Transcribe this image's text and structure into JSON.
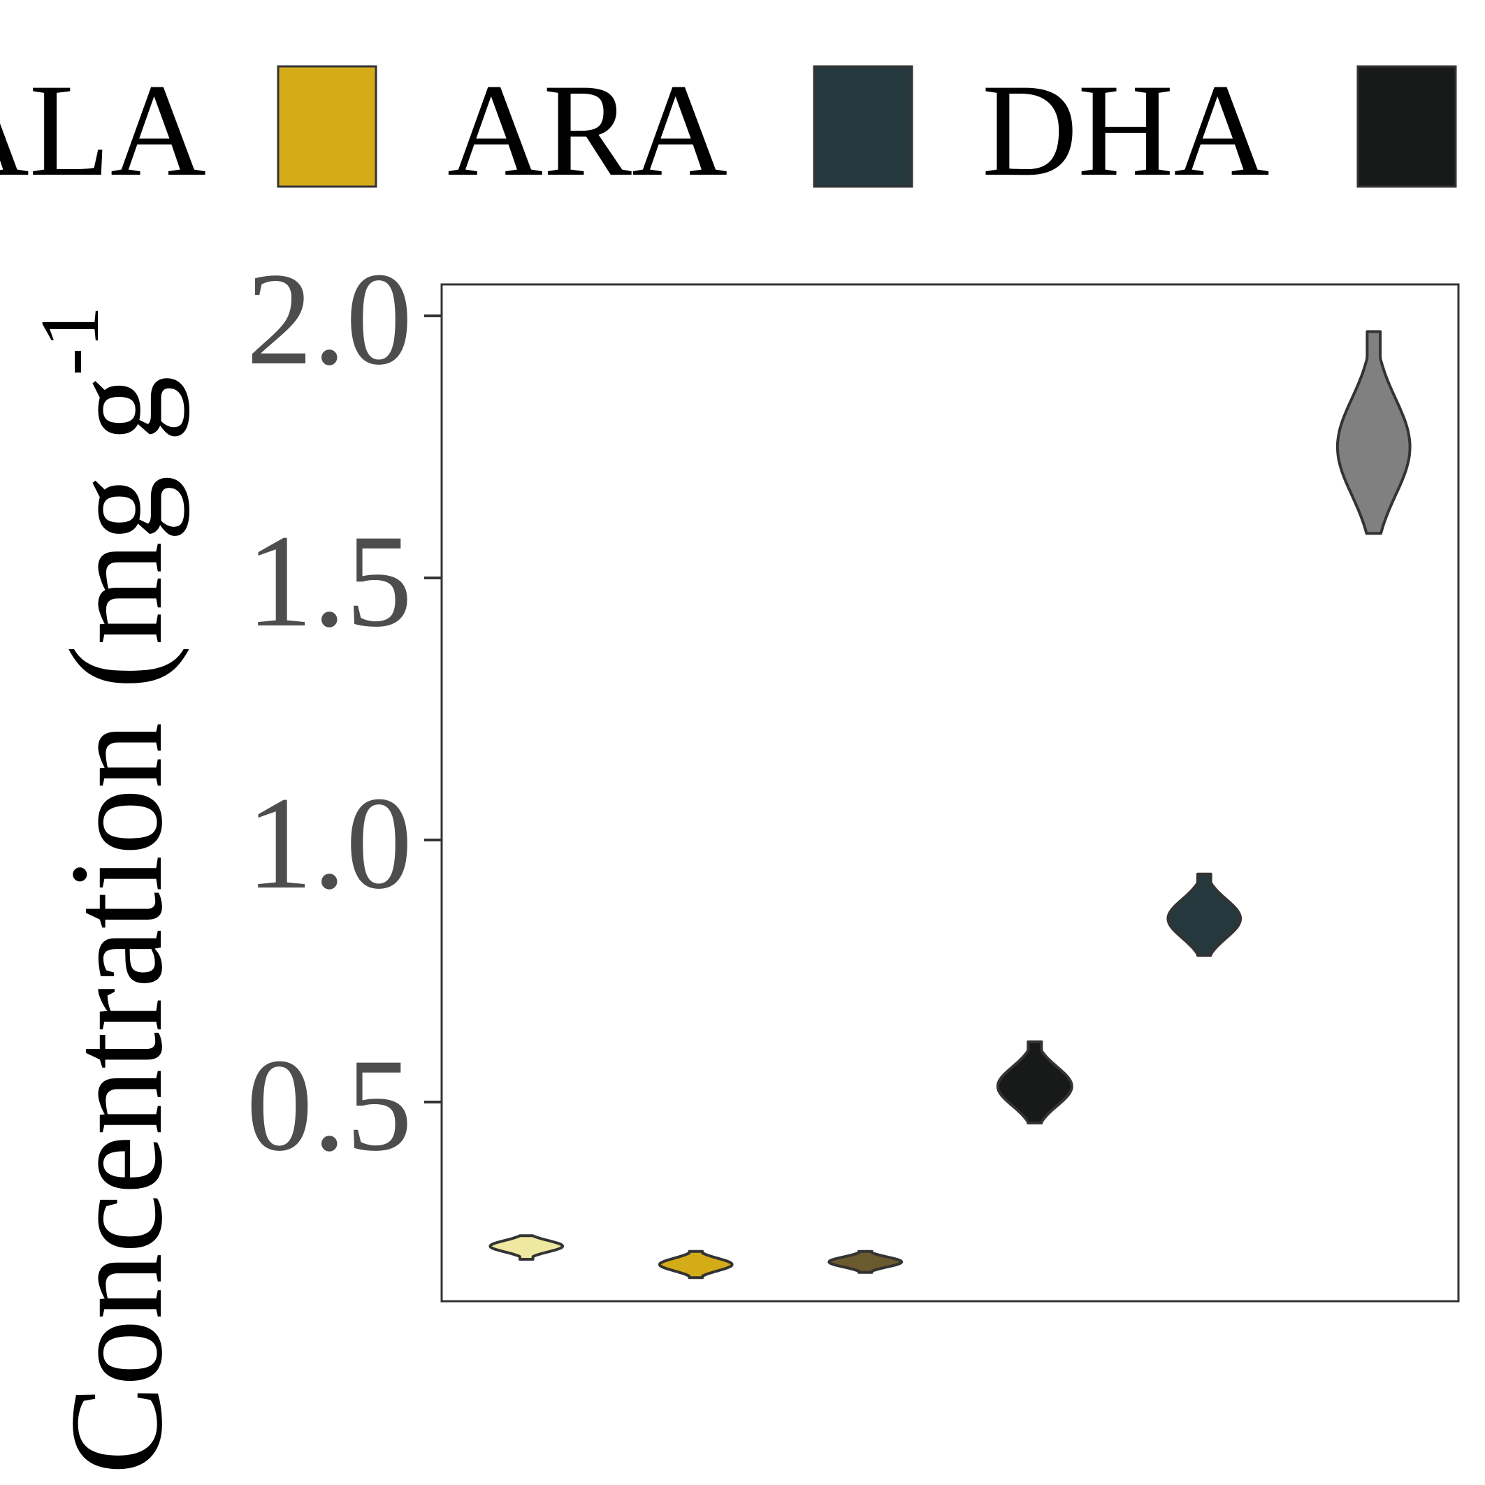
{
  "chart_data": {
    "type": "violin",
    "ylabel": "Concentration (mg g",
    "ylabel_superscript": "-1",
    "yticks": [
      "0.5",
      "1.0",
      "1.5",
      "2.0"
    ],
    "ytick_values": [
      0.5,
      1.0,
      1.5,
      2.0
    ],
    "ylim": [
      0.12,
      2.06
    ],
    "grid": false,
    "legend_position": "top",
    "legend": [
      {
        "name": "ALA",
        "color": "#EEE8A0"
      },
      {
        "name": "ARA",
        "color": "#D4AC18"
      },
      {
        "name": "DHA",
        "color": "#25383D"
      },
      {
        "name": "",
        "color": "#171A19"
      }
    ],
    "series": [
      {
        "fill": "#EEE8A0",
        "stroke": "#333333",
        "min": 0.2,
        "max": 0.245,
        "peak": 0.225,
        "width": 0.45
      },
      {
        "fill": "#D4AC18",
        "stroke": "#333333",
        "min": 0.165,
        "max": 0.215,
        "peak": 0.19,
        "width": 0.45
      },
      {
        "fill": "#6B5A2E",
        "stroke": "#333333",
        "min": 0.175,
        "max": 0.215,
        "peak": 0.195,
        "width": 0.45
      },
      {
        "fill": "#171A19",
        "stroke": "#333333",
        "min": 0.46,
        "max": 0.615,
        "peak": 0.53,
        "width": 0.46
      },
      {
        "fill": "#25383D",
        "stroke": "#333333",
        "min": 0.78,
        "max": 0.935,
        "peak": 0.85,
        "width": 0.45
      },
      {
        "fill": "#808080",
        "stroke": "#333333",
        "min": 1.585,
        "max": 1.97,
        "peak": 1.75,
        "width": 0.45
      }
    ]
  }
}
